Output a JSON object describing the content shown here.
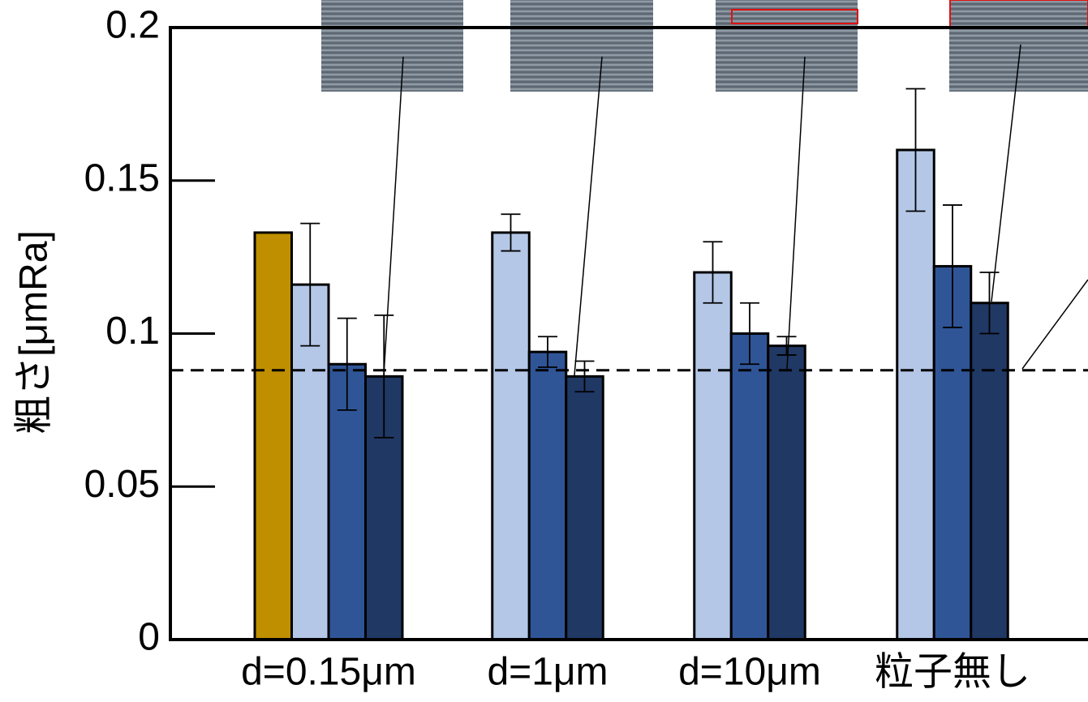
{
  "chart_data": {
    "type": "bar",
    "y_label": "粗さ[μmRa]",
    "categories": [
      "d=0.15μm",
      "d=1μm",
      "d=10μm",
      "粒子無し"
    ],
    "series": [
      {
        "color": "#bf8f00",
        "values": [
          0.133,
          null,
          null,
          null
        ],
        "errors": [
          null,
          null,
          null,
          null
        ]
      },
      {
        "color": "#b4c7e7",
        "values": [
          0.116,
          0.133,
          0.12,
          0.16
        ],
        "errors": [
          0.02,
          0.006,
          0.01,
          0.02
        ]
      },
      {
        "color": "#2f5597",
        "values": [
          0.09,
          0.094,
          0.1,
          0.122
        ],
        "errors": [
          0.015,
          0.005,
          0.01,
          0.02
        ]
      },
      {
        "color": "#203864",
        "values": [
          0.086,
          0.086,
          0.096,
          0.11
        ],
        "errors": [
          0.02,
          0.005,
          0.003,
          0.01
        ]
      }
    ],
    "reference_line": 0.088,
    "ylim": [
      0,
      0.2
    ],
    "yticks": [
      0,
      0.05,
      0.1,
      0.15,
      0.2
    ]
  }
}
